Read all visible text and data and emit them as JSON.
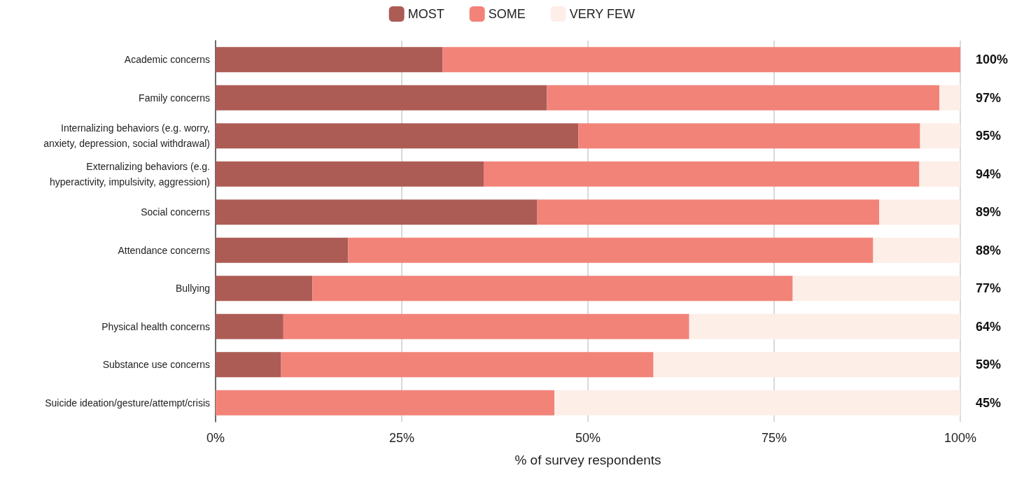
{
  "chart_data": {
    "type": "bar",
    "orientation": "horizontal",
    "stacked": true,
    "categories": [
      "Academic concerns",
      "Family concerns",
      "Internalizing behaviors (e.g. worry,\nanxiety, depression, social withdrawal)",
      "Externalizing behaviors (e.g.\nhyperactivity, impulsivity, aggression)",
      "Social concerns",
      "Attendance concerns",
      "Bullying",
      "Physical health concerns",
      "Substance use concerns",
      "Suicide ideation/gesture/attempt/crisis"
    ],
    "series": [
      {
        "name": "MOST",
        "color": "#ad5c55",
        "values": [
          30.5,
          44.5,
          48.7,
          36.0,
          43.2,
          17.8,
          13.0,
          9.1,
          8.8,
          0
        ]
      },
      {
        "name": "SOME",
        "color": "#f28379",
        "values": [
          69.5,
          52.7,
          45.9,
          58.5,
          45.9,
          70.5,
          64.5,
          54.5,
          50.0,
          45.5
        ]
      },
      {
        "name": "VERY FEW",
        "color": "#fdeee8",
        "values": [
          0,
          2.8,
          5.4,
          5.5,
          10.9,
          11.7,
          22.5,
          36.4,
          41.2,
          54.5
        ]
      }
    ],
    "annotations": [
      "100%",
      "97%",
      "95%",
      "94%",
      "89%",
      "88%",
      "77%",
      "64%",
      "59%",
      "45%"
    ],
    "xlabel": "% of survey respondents",
    "xlim": [
      0,
      100
    ],
    "xticks": [
      {
        "value": 0,
        "label": "0%"
      },
      {
        "value": 25,
        "label": "25%"
      },
      {
        "value": 50,
        "label": "50%"
      },
      {
        "value": 75,
        "label": "75%"
      },
      {
        "value": 100,
        "label": "100%"
      }
    ],
    "grid": "x",
    "legend": "top"
  }
}
